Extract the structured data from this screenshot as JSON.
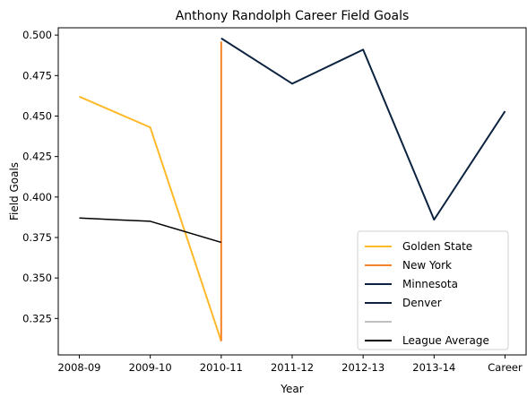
{
  "chart_data": {
    "type": "line",
    "title": "Anthony Randolph Career Field Goals",
    "xlabel": "Year",
    "ylabel": "Field Goals",
    "categories": [
      "2008-09",
      "2009-10",
      "2010-11",
      "2011-12",
      "2012-13",
      "2013-14",
      "Career"
    ],
    "yticks": [
      "0.325",
      "0.350",
      "0.375",
      "0.400",
      "0.425",
      "0.450",
      "0.475",
      "0.500"
    ],
    "ylim": [
      0.3025,
      0.5045
    ],
    "grid": false,
    "legend_position": "lower-right",
    "series": [
      {
        "name": "Golden State",
        "color": "#FDB927",
        "points": [
          [
            0,
            0.462
          ],
          [
            1,
            0.443
          ],
          [
            2,
            0.311
          ]
        ]
      },
      {
        "name": "New York",
        "color": "#F58426",
        "points": [
          [
            2,
            0.311
          ],
          [
            2,
            0.496
          ]
        ]
      },
      {
        "name": "Minnesota",
        "color": "#0C2340",
        "points": [
          [
            2,
            0.498
          ],
          [
            3,
            0.47
          ],
          [
            4,
            0.491
          ],
          [
            5,
            0.386
          ],
          [
            6,
            0.453
          ]
        ]
      },
      {
        "name": "Denver",
        "color": "#0E2240",
        "points": []
      },
      {
        "name": "",
        "color": "#BEC0C2",
        "points": []
      },
      {
        "name": "League Average",
        "color": "#000000",
        "points": [
          [
            0,
            0.387
          ],
          [
            1,
            0.385
          ],
          [
            2,
            0.372
          ]
        ]
      }
    ]
  }
}
